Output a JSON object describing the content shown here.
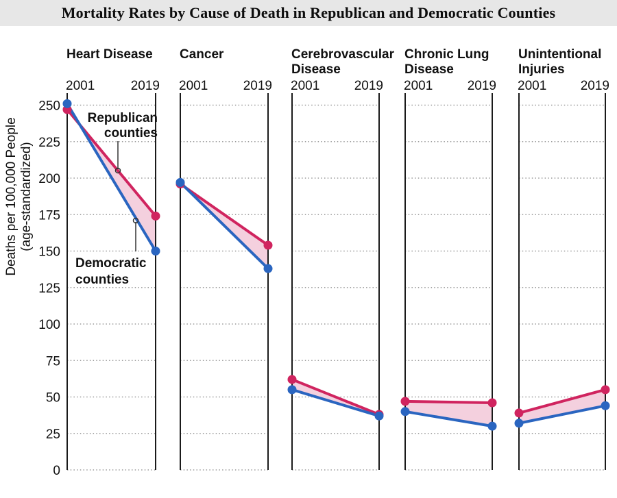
{
  "header": {
    "title": "Mortality Rates by Cause of Death in Republican and Democratic Counties",
    "bg_color": "#e7e7e7"
  },
  "y_axis": {
    "title_lines": [
      "Deaths per 100,000 People",
      "(age-standardized)"
    ],
    "ticks": [
      0,
      25,
      50,
      75,
      100,
      125,
      150,
      175,
      200,
      225,
      250
    ]
  },
  "series_meta": {
    "republican": {
      "name": "Republican counties",
      "label_lines": [
        "Republican",
        "counties"
      ],
      "color": "#d0245f"
    },
    "democratic": {
      "name": "Democratic counties",
      "label_lines": [
        "Democratic",
        "counties"
      ],
      "color": "#2a65c0"
    }
  },
  "band_color": "#f4d0de",
  "grid_color": "#9a9a9a",
  "axis_color": "#1a1a1a",
  "chart_data": {
    "type": "line",
    "subtype": "paired-slope-panels",
    "x": [
      "2001",
      "2019"
    ],
    "ylabel": "Deaths per 100,000 People (age-standardized)",
    "ylim": [
      0,
      250
    ],
    "grid": true,
    "panels": [
      {
        "title": "Heart Disease",
        "title_lines": [
          "Heart Disease"
        ],
        "series": [
          {
            "name": "Republican counties",
            "values": [
              247,
              174
            ]
          },
          {
            "name": "Democratic counties",
            "values": [
              251,
              150
            ]
          }
        ]
      },
      {
        "title": "Cancer",
        "title_lines": [
          "Cancer"
        ],
        "series": [
          {
            "name": "Republican counties",
            "values": [
              196,
              154
            ]
          },
          {
            "name": "Democratic counties",
            "values": [
              197,
              138
            ]
          }
        ]
      },
      {
        "title": "Cerebrovascular Disease",
        "title_lines": [
          "Cerebrovascular",
          "Disease"
        ],
        "series": [
          {
            "name": "Republican counties",
            "values": [
              62,
              38
            ]
          },
          {
            "name": "Democratic counties",
            "values": [
              55,
              37
            ]
          }
        ]
      },
      {
        "title": "Chronic Lung Disease",
        "title_lines": [
          "Chronic Lung",
          "Disease"
        ],
        "series": [
          {
            "name": "Republican counties",
            "values": [
              47,
              46
            ]
          },
          {
            "name": "Democratic counties",
            "values": [
              40,
              30
            ]
          }
        ]
      },
      {
        "title": "Unintentional Injuries",
        "title_lines": [
          "Unintentional",
          "Injuries"
        ],
        "series": [
          {
            "name": "Republican counties",
            "values": [
              39,
              55
            ]
          },
          {
            "name": "Democratic counties",
            "values": [
              32,
              44
            ]
          }
        ]
      }
    ]
  }
}
